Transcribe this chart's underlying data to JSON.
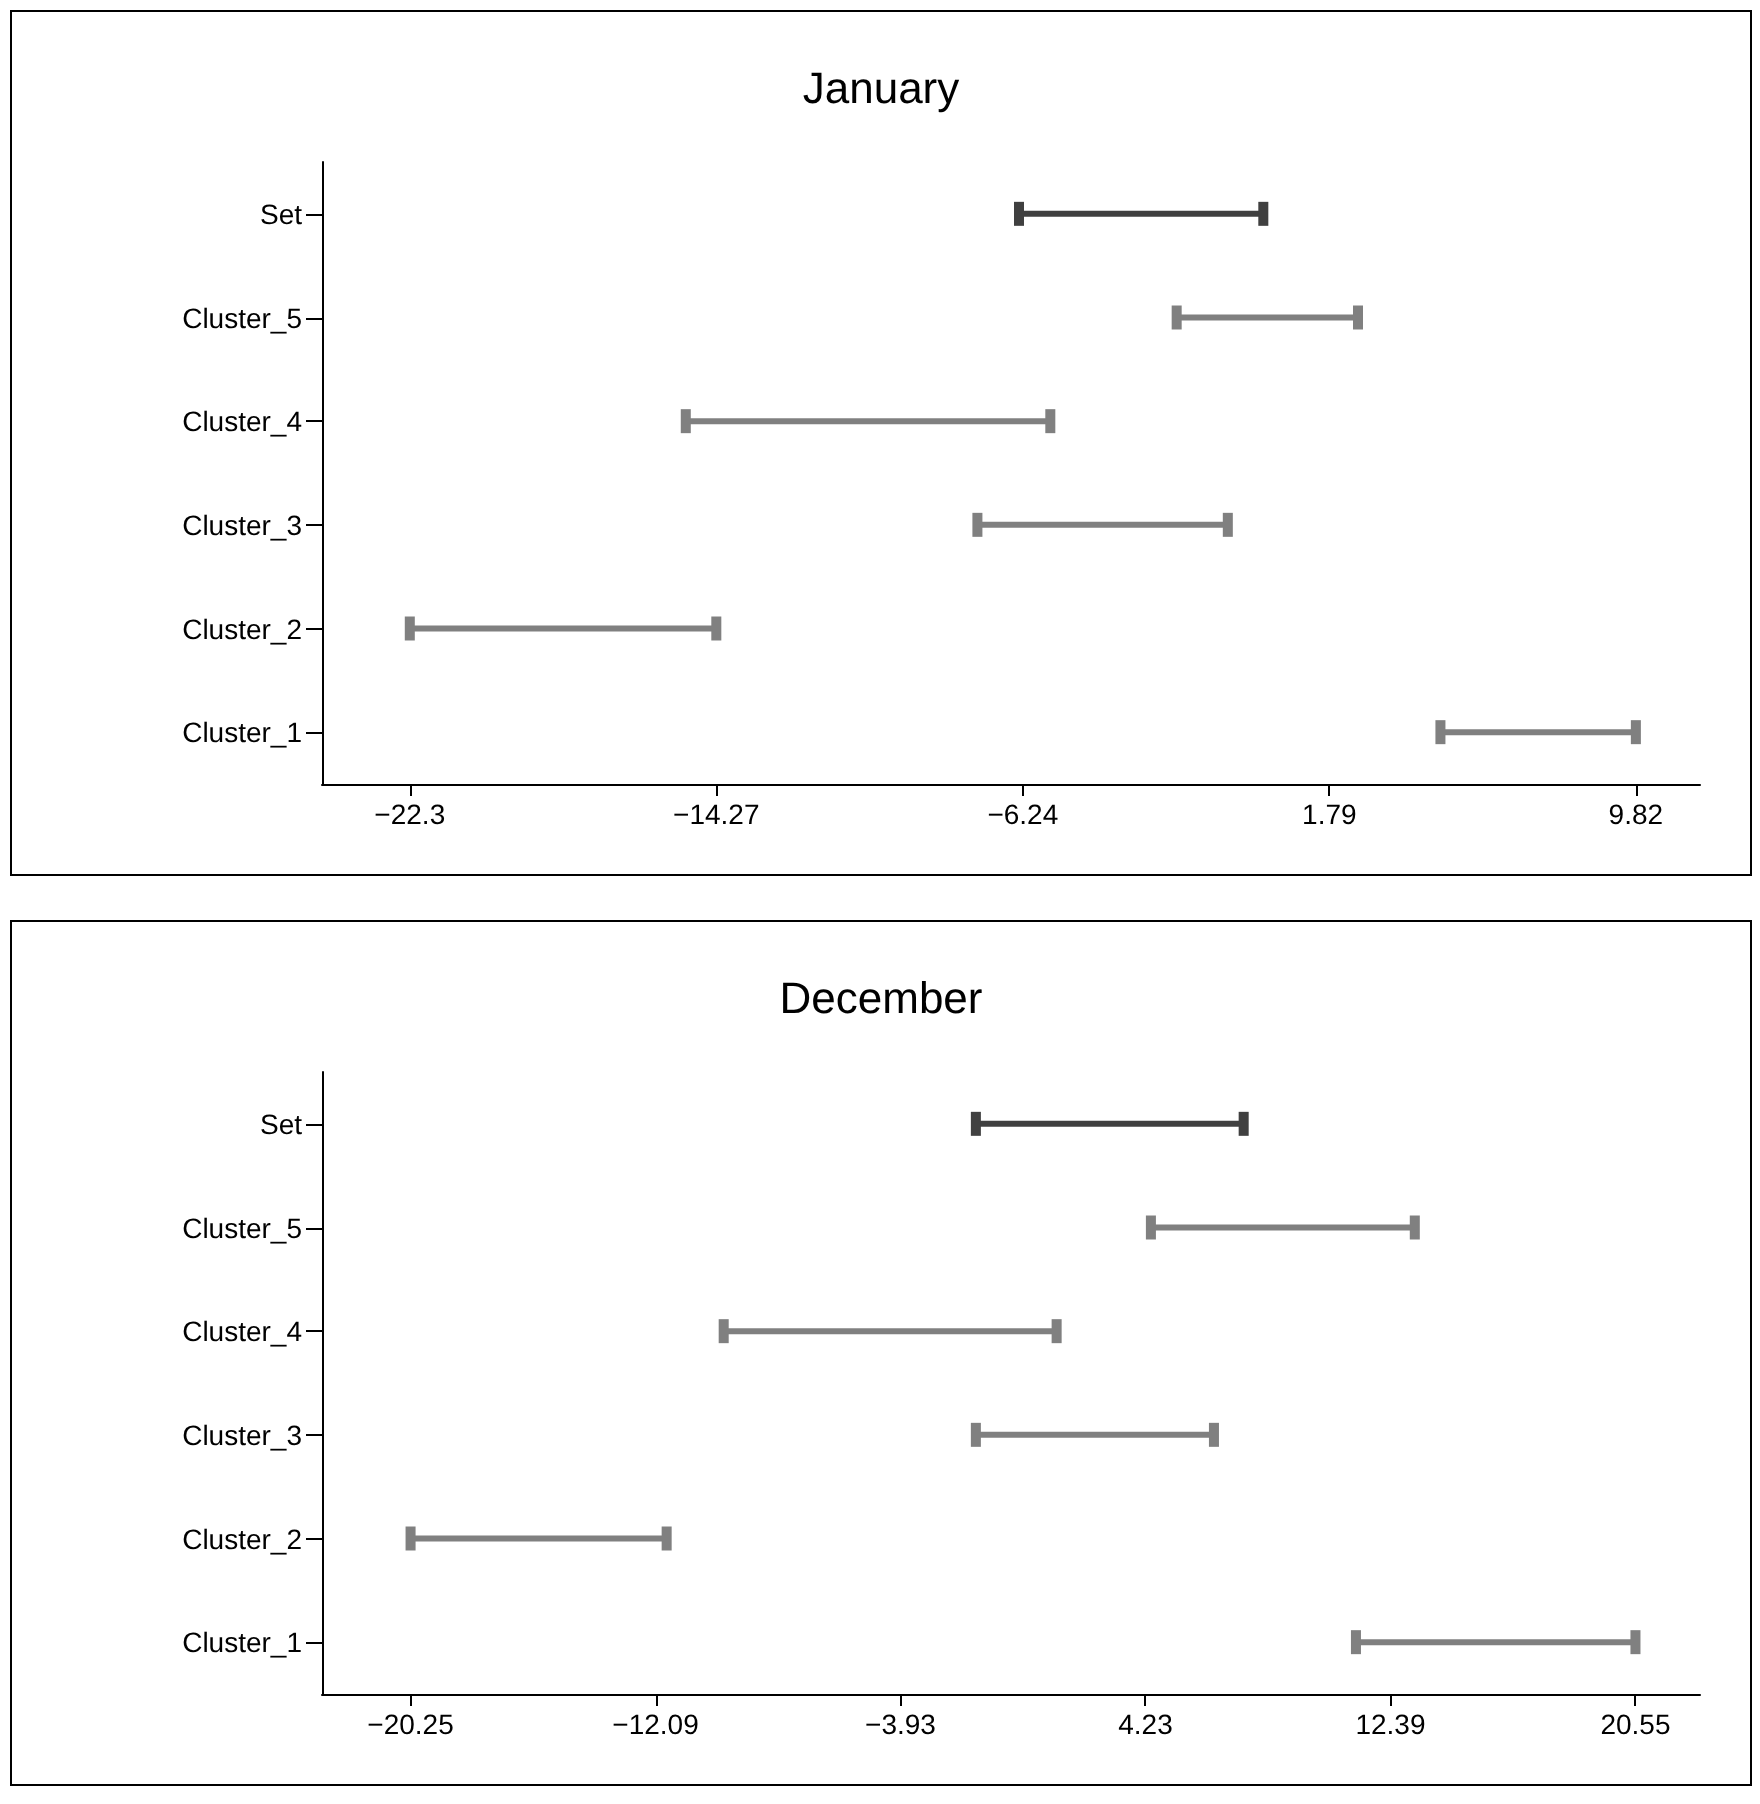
{
  "chart_data": [
    {
      "type": "bar",
      "orientation": "horizontal",
      "title": "January",
      "categories": [
        "Set",
        "Cluster_5",
        "Cluster_4",
        "Cluster_3",
        "Cluster_2",
        "Cluster_1"
      ],
      "base": [
        -6.34,
        -2.21,
        -15.07,
        -7.43,
        -22.3,
        4.7
      ],
      "values": [
        6.4,
        4.75,
        9.55,
        6.56,
        8.03,
        5.12
      ],
      "colors": [
        "#404040",
        "#808080",
        "#808080",
        "#808080",
        "#808080",
        "#808080"
      ],
      "xlim": [
        -24.6,
        11.5
      ],
      "xticks": [
        {
          "value": -22.3,
          "label": "−22.3"
        },
        {
          "value": -14.27,
          "label": "−14.27"
        },
        {
          "value": -6.24,
          "label": "−6.24"
        },
        1.79,
        9.82
      ]
    },
    {
      "type": "bar",
      "orientation": "horizontal",
      "title": "December",
      "categories": [
        "Set",
        "Cluster_5",
        "Cluster_4",
        "Cluster_3",
        "Cluster_2",
        "Cluster_1"
      ],
      "base": [
        -1.42,
        4.41,
        -9.82,
        -1.42,
        -20.25,
        11.24
      ],
      "values": [
        8.92,
        8.79,
        11.09,
        7.93,
        8.53,
        9.31
      ],
      "colors": [
        "#404040",
        "#808080",
        "#808080",
        "#808080",
        "#808080",
        "#808080"
      ],
      "xlim": [
        -23.2,
        22.7
      ],
      "xticks": [
        {
          "value": -20.25,
          "label": "−20.25"
        },
        {
          "value": -12.09,
          "label": "−12.09"
        },
        {
          "value": -3.93,
          "label": "−3.93"
        },
        4.23,
        12.39,
        20.55
      ]
    }
  ]
}
